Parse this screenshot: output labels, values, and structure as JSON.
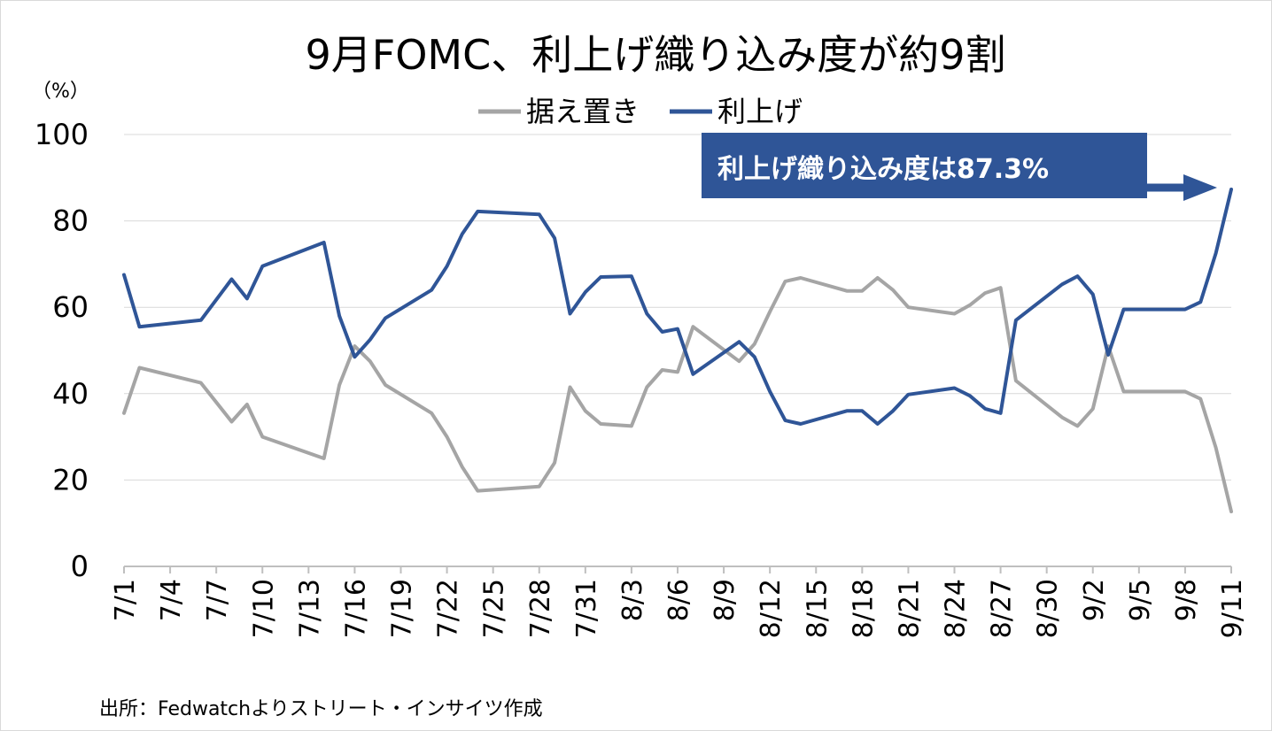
{
  "chart_data": {
    "type": "line",
    "title": "9月FOMC、利上げ織り込み度が約9割",
    "unit_label": "（%）",
    "ylim": [
      0,
      100
    ],
    "yticks": [
      "0",
      "20",
      "40",
      "60",
      "80",
      "100"
    ],
    "grid": true,
    "legend_position": "top",
    "x_ticks": [
      "7/1",
      "7/4",
      "7/7",
      "7/10",
      "7/13",
      "7/16",
      "7/19",
      "7/22",
      "7/25",
      "7/28",
      "7/31",
      "8/3",
      "8/6",
      "8/9",
      "8/12",
      "8/15",
      "8/18",
      "8/21",
      "8/24",
      "8/27",
      "8/30",
      "9/2",
      "9/5",
      "9/8",
      "9/11"
    ],
    "series": [
      {
        "name": "据え置き",
        "color": "#a5a5a5",
        "points": [
          [
            "2016-07-01",
            35.5
          ],
          [
            "2016-07-02",
            46
          ],
          [
            "2016-07-06",
            42.5
          ],
          [
            "2016-07-08",
            33.5
          ],
          [
            "2016-07-09",
            37.5
          ],
          [
            "2016-07-10",
            30
          ],
          [
            "2016-07-14",
            25
          ],
          [
            "2016-07-15",
            42
          ],
          [
            "2016-07-16",
            51
          ],
          [
            "2016-07-17",
            47.5
          ],
          [
            "2016-07-18",
            42
          ],
          [
            "2016-07-21",
            35.5
          ],
          [
            "2016-07-22",
            30
          ],
          [
            "2016-07-23",
            23
          ],
          [
            "2016-07-24",
            17.5
          ],
          [
            "2016-07-28",
            18.5
          ],
          [
            "2016-07-29",
            24
          ],
          [
            "2016-07-30",
            41.5
          ],
          [
            "2016-07-31",
            36
          ],
          [
            "2016-08-01",
            33
          ],
          [
            "2016-08-03",
            32.5
          ],
          [
            "2016-08-04",
            41.5
          ],
          [
            "2016-08-05",
            45.5
          ],
          [
            "2016-08-06",
            45
          ],
          [
            "2016-08-07",
            55.5
          ],
          [
            "2016-08-10",
            47.5
          ],
          [
            "2016-08-11",
            51.5
          ],
          [
            "2016-08-12",
            59
          ],
          [
            "2016-08-13",
            66
          ],
          [
            "2016-08-14",
            66.8
          ],
          [
            "2016-08-17",
            63.8
          ],
          [
            "2016-08-18",
            63.8
          ],
          [
            "2016-08-19",
            66.8
          ],
          [
            "2016-08-20",
            64
          ],
          [
            "2016-08-21",
            60
          ],
          [
            "2016-08-24",
            58.5
          ],
          [
            "2016-08-25",
            60.5
          ],
          [
            "2016-08-26",
            63.3
          ],
          [
            "2016-08-27",
            64.5
          ],
          [
            "2016-08-28",
            43
          ],
          [
            "2016-08-31",
            34.5
          ],
          [
            "2016-09-01",
            32.5
          ],
          [
            "2016-09-02",
            36.5
          ],
          [
            "2016-09-03",
            51
          ],
          [
            "2016-09-04",
            40.5
          ],
          [
            "2016-09-08",
            40.5
          ],
          [
            "2016-09-09",
            38.8
          ],
          [
            "2016-09-10",
            27.5
          ],
          [
            "2016-09-11",
            12.7
          ]
        ]
      },
      {
        "name": "利上げ",
        "color": "#2f5597",
        "points": [
          [
            "2016-07-01",
            67.5
          ],
          [
            "2016-07-02",
            55.5
          ],
          [
            "2016-07-06",
            57
          ],
          [
            "2016-07-08",
            66.5
          ],
          [
            "2016-07-09",
            62
          ],
          [
            "2016-07-10",
            69.5
          ],
          [
            "2016-07-14",
            75
          ],
          [
            "2016-07-15",
            58
          ],
          [
            "2016-07-16",
            48.5
          ],
          [
            "2016-07-17",
            52.5
          ],
          [
            "2016-07-18",
            57.5
          ],
          [
            "2016-07-21",
            64
          ],
          [
            "2016-07-22",
            69.5
          ],
          [
            "2016-07-23",
            77
          ],
          [
            "2016-07-24",
            82.2
          ],
          [
            "2016-07-28",
            81.5
          ],
          [
            "2016-07-29",
            76
          ],
          [
            "2016-07-30",
            58.5
          ],
          [
            "2016-07-31",
            63.5
          ],
          [
            "2016-08-01",
            67
          ],
          [
            "2016-08-03",
            67.2
          ],
          [
            "2016-08-04",
            58.5
          ],
          [
            "2016-08-05",
            54.3
          ],
          [
            "2016-08-06",
            55
          ],
          [
            "2016-08-07",
            44.5
          ],
          [
            "2016-08-10",
            52
          ],
          [
            "2016-08-11",
            48.5
          ],
          [
            "2016-08-12",
            40.5
          ],
          [
            "2016-08-13",
            33.8
          ],
          [
            "2016-08-14",
            33
          ],
          [
            "2016-08-17",
            36
          ],
          [
            "2016-08-18",
            36
          ],
          [
            "2016-08-19",
            33
          ],
          [
            "2016-08-20",
            36
          ],
          [
            "2016-08-21",
            39.8
          ],
          [
            "2016-08-24",
            41.3
          ],
          [
            "2016-08-25",
            39.5
          ],
          [
            "2016-08-26",
            36.5
          ],
          [
            "2016-08-27",
            35.5
          ],
          [
            "2016-08-28",
            57
          ],
          [
            "2016-08-31",
            65.3
          ],
          [
            "2016-09-01",
            67.2
          ],
          [
            "2016-09-02",
            63
          ],
          [
            "2016-09-03",
            49
          ],
          [
            "2016-09-04",
            59.5
          ],
          [
            "2016-09-08",
            59.5
          ],
          [
            "2016-09-09",
            61.2
          ],
          [
            "2016-09-10",
            72.5
          ],
          [
            "2016-09-11",
            87.3
          ]
        ]
      }
    ],
    "annotation": "利上げ織り込み度は87.3%",
    "annotation_color": "#2f5597",
    "source": "出所：Fedwatchよりストリート・インサイツ作成"
  }
}
